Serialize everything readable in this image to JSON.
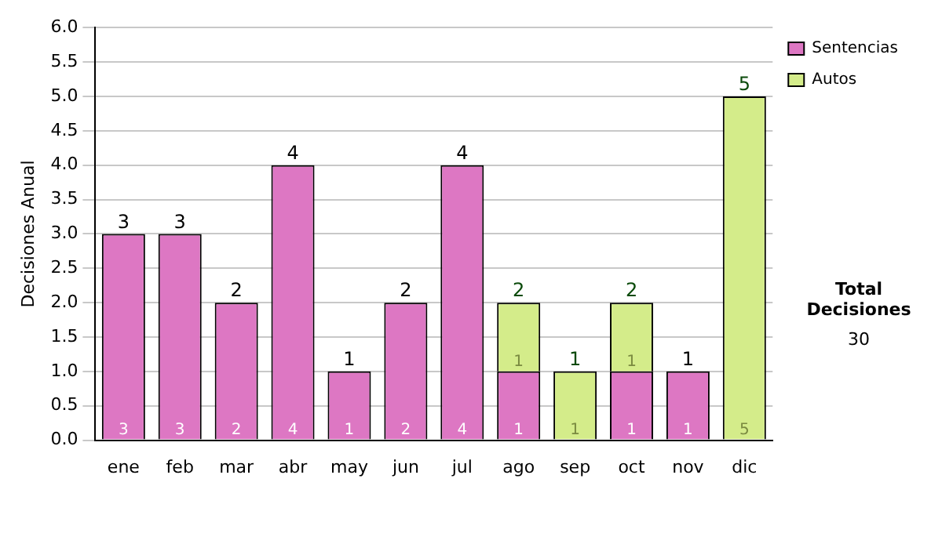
{
  "chart_data": {
    "type": "bar",
    "stacked": true,
    "ylabel": "Decisiones Anual",
    "categories": [
      "ene",
      "feb",
      "mar",
      "abr",
      "may",
      "jun",
      "jul",
      "ago",
      "sep",
      "oct",
      "nov",
      "dic"
    ],
    "series": [
      {
        "name": "Sentencias",
        "color": "#dd77c3",
        "values": [
          3,
          3,
          2,
          4,
          1,
          2,
          4,
          1,
          null,
          1,
          1,
          null
        ]
      },
      {
        "name": "Autos",
        "color": "#d4ec8a",
        "values": [
          null,
          null,
          null,
          null,
          null,
          null,
          null,
          1,
          1,
          1,
          null,
          5
        ]
      }
    ],
    "totals": [
      "3",
      "3",
      "2",
      "4",
      "1",
      "2",
      "4",
      "2",
      "1",
      "2",
      "1",
      "5"
    ],
    "data_labels": true,
    "ylim": [
      0,
      6
    ],
    "yticks": [
      {
        "value": 0,
        "label": "0.0"
      },
      {
        "value": 0.5,
        "label": "0.5"
      },
      {
        "value": 1,
        "label": "1.0"
      },
      {
        "value": 1.5,
        "label": "1.5"
      },
      {
        "value": 2,
        "label": "2.0"
      },
      {
        "value": 2.5,
        "label": "2.5"
      },
      {
        "value": 3,
        "label": "3.0"
      },
      {
        "value": 3.5,
        "label": "3.5"
      },
      {
        "value": 4,
        "label": "4.0"
      },
      {
        "value": 4.5,
        "label": "4.5"
      },
      {
        "value": 5,
        "label": "5.0"
      },
      {
        "value": 5.5,
        "label": "5.5"
      },
      {
        "value": 6,
        "label": "6.0"
      }
    ],
    "grid": "y",
    "legend": "right",
    "annotations": [
      "Total Decisiones",
      "30"
    ]
  }
}
